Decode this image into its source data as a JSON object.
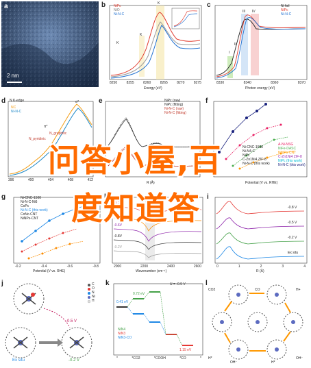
{
  "panels": {
    "a": {
      "label": "a",
      "scale": "2 nm"
    },
    "b": {
      "label": "b",
      "legend": [
        "NiPc",
        "NiO",
        "Ni-N-C"
      ],
      "xlabel": "Energy (eV)",
      "ylabel": "Intensity (a. u.)",
      "xticks": [
        "8250",
        "8255",
        "8260",
        "8265",
        "8270",
        "8275"
      ],
      "annot_k": "K",
      "annot_kprime": "K",
      "annot_kb": "K",
      "inset_label": "Energy (eV)"
    },
    "c": {
      "label": "c",
      "legend": [
        "Ni foil",
        "NiPc",
        "Ni-N-C"
      ],
      "xlabel": "Photon energy (eV)",
      "ylabel": "Normalized intensity (a. u.)",
      "xticks": [
        "8330",
        "8340",
        "8360",
        "8370"
      ],
      "peaks": [
        "I",
        "II",
        "III",
        "IV"
      ]
    },
    "d": {
      "label": "d",
      "title": "N K-edge",
      "legend": [
        "NC",
        "Ni-N-C"
      ],
      "xlabel": "Photon energy (eV)",
      "ylabel": "Normalized intensity",
      "xticks": [
        "396",
        "400",
        "404",
        "408",
        "412"
      ],
      "sigma": "σ*",
      "pi": "π*",
      "n_pyridinic": "N_pyridinic",
      "n_graphitic": "N_graphitic"
    },
    "e": {
      "label": "e",
      "legend": [
        "NiPc (raw)",
        "NiPc (fitting)",
        "Ni-N-C (raw)",
        "Ni-N-C (fitting)"
      ],
      "xlabel": "R (Å)"
    },
    "f": {
      "label": "f",
      "xlabel": "Potential (V vs. RHE)",
      "ylabel": "TOF (site⁻¹ h⁻¹)",
      "legend_left": [
        "Ni-CNC-1500",
        "Ni-N4-C",
        "NiPc",
        "C-Zn1Ni4 ZIF-8",
        "Ni-N-C (this work)"
      ],
      "legend_right": [
        "A-Ni-NSG",
        "NiFe-DASC",
        "NiNPs-CNT",
        "C-Zn1Ni4 ZIF-8",
        "NiPc (this work)",
        "Ni-N-C (this work)"
      ],
      "xticks": [
        "-0.6",
        "-0.4",
        "-1.0"
      ]
    },
    "g": {
      "label": "g",
      "xlabel": "Potential (V vs. RHE)",
      "ylabel": "TOF (site⁻¹ h⁻¹)",
      "legend": [
        "Ni-CNC-1500",
        "Ni-N-C-Ni6",
        "CoPc",
        "Ni-N-C (this work)",
        "CoNc-CNT",
        "NiNPs-CNT"
      ],
      "xticks": [
        "-0.2",
        "-0.4",
        "-0.6",
        "-0.8"
      ],
      "yticks": [
        "10⁴",
        "10³",
        "10²",
        "10¹"
      ]
    },
    "h": {
      "label": "h",
      "xlabel": "Wavenumber (cm⁻¹)",
      "ylabel": "Absorbance (a. u.)",
      "xticks": [
        "2000",
        "2200",
        "2400",
        "2600"
      ],
      "potentials": [
        "-0.2V",
        "-0.4V",
        "-0.6V",
        "-0.8V",
        "-0.2V"
      ]
    },
    "i": {
      "label": "i",
      "xlabel": "R (Å)",
      "ylabel": "|FT(k³χ(k))|",
      "curves": [
        "-0.8 V",
        "-0.5 V",
        "-0.2 V",
        "Ex situ"
      ],
      "xticks": [
        "0",
        "1",
        "2",
        "3",
        "4"
      ]
    },
    "j": {
      "label": "j",
      "ex_situ": "Ex situ",
      "v1": "-0.5 V",
      "v2": "-0.2 V",
      "atoms": [
        "C",
        "O",
        "N",
        "Ni",
        "H"
      ]
    },
    "k": {
      "label": "k",
      "title": "U = -0.9 V",
      "ylabel": "ΔG (eV)",
      "values": [
        "0.41 eV",
        "0.72 eV",
        "1.15 eV"
      ],
      "legend": [
        "NiN4",
        "NiN3",
        "NiN3-CO"
      ],
      "xticks": [
        "*",
        "*CO2",
        "*COOH",
        "*CO",
        "*"
      ]
    },
    "l": {
      "label": "l",
      "species": [
        "CO2",
        "CO",
        "H+",
        "H*",
        "OH⁻",
        "H*",
        "OH⁻"
      ]
    }
  },
  "overlay": {
    "line1": "问答小屋,百",
    "line2": "度知道答"
  }
}
